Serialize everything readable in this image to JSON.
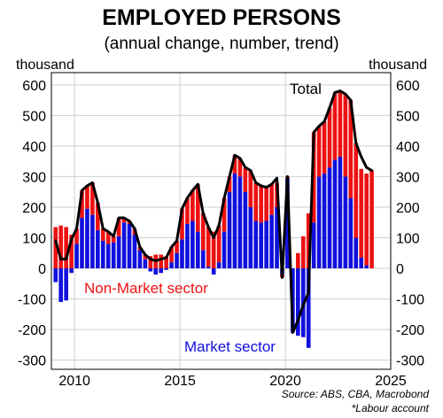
{
  "chart_data": {
    "type": "bar",
    "title": "EMPLOYED PERSONS",
    "subtitle": "(annual change, number, trend)",
    "unit_left": "thousand",
    "unit_right": "thousand",
    "ylim": [
      -330,
      640
    ],
    "yticks": [
      -300,
      -200,
      -100,
      0,
      100,
      200,
      300,
      400,
      500,
      600
    ],
    "xlim": [
      2008.9,
      2025
    ],
    "xticks": [
      2010,
      2015,
      2020,
      2025
    ],
    "grid": true,
    "x": [
      2009.1,
      2009.35,
      2009.6,
      2009.85,
      2010.1,
      2010.35,
      2010.6,
      2010.85,
      2011.1,
      2011.35,
      2011.6,
      2011.85,
      2012.1,
      2012.35,
      2012.6,
      2012.85,
      2013.1,
      2013.35,
      2013.6,
      2013.85,
      2014.1,
      2014.35,
      2014.6,
      2014.85,
      2015.1,
      2015.35,
      2015.6,
      2015.85,
      2016.1,
      2016.35,
      2016.6,
      2016.85,
      2017.1,
      2017.35,
      2017.6,
      2017.85,
      2018.1,
      2018.35,
      2018.6,
      2018.85,
      2019.1,
      2019.35,
      2019.6,
      2019.85,
      2020.1,
      2020.35,
      2020.6,
      2020.85,
      2021.1,
      2021.35,
      2021.6,
      2021.85,
      2022.1,
      2022.35,
      2022.6,
      2022.85,
      2023.1,
      2023.35,
      2023.6,
      2023.85,
      2024.1
    ],
    "series": [
      {
        "name": "Market sector",
        "color": "#1010dd",
        "values": [
          -45,
          -110,
          -105,
          -15,
          80,
          165,
          195,
          175,
          125,
          90,
          80,
          85,
          105,
          150,
          145,
          110,
          60,
          30,
          -10,
          -20,
          -15,
          -5,
          20,
          50,
          95,
          145,
          155,
          120,
          60,
          5,
          -20,
          20,
          120,
          250,
          310,
          300,
          250,
          200,
          155,
          150,
          155,
          175,
          200,
          -20,
          295,
          -210,
          -220,
          -225,
          -260,
          150,
          300,
          310,
          330,
          355,
          365,
          300,
          230,
          100,
          35,
          10,
          0
        ]
      },
      {
        "name": "Non-Market sector",
        "color": "#ee1111",
        "values": [
          135,
          140,
          135,
          110,
          50,
          90,
          75,
          105,
          90,
          40,
          40,
          20,
          60,
          15,
          10,
          20,
          10,
          15,
          40,
          45,
          45,
          40,
          50,
          40,
          100,
          85,
          100,
          155,
          120,
          130,
          120,
          120,
          110,
          50,
          60,
          60,
          80,
          120,
          125,
          120,
          110,
          100,
          80,
          -10,
          5,
          0,
          50,
          105,
          180,
          295,
          165,
          170,
          195,
          220,
          215,
          270,
          320,
          310,
          290,
          300,
          320
        ]
      }
    ],
    "total": {
      "name": "Total",
      "color": "#000000",
      "values": [
        90,
        30,
        30,
        95,
        130,
        255,
        270,
        280,
        215,
        130,
        120,
        105,
        165,
        165,
        155,
        130,
        70,
        45,
        30,
        25,
        30,
        35,
        70,
        90,
        195,
        230,
        255,
        275,
        180,
        135,
        100,
        140,
        230,
        300,
        370,
        360,
        330,
        320,
        280,
        270,
        265,
        275,
        295,
        -30,
        300,
        -210,
        -170,
        -120,
        -80,
        445,
        465,
        480,
        525,
        575,
        580,
        570,
        550,
        410,
        365,
        330,
        320
      ]
    },
    "annotations": [
      {
        "text": "Total",
        "color": "#000000"
      },
      {
        "text": "Non-Market sector",
        "color": "#ee1111"
      },
      {
        "text": "Market sector",
        "color": "#1010dd"
      }
    ],
    "source": "Source: ABS, CBA, Macrobond",
    "footnote": "*Labour account"
  }
}
